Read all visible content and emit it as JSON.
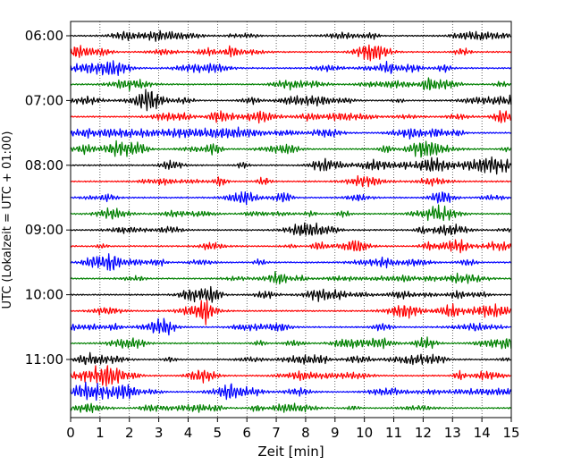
{
  "chart_data": {
    "type": "line",
    "subtype": "helicorder",
    "xlabel": "Zeit  [min]",
    "ylabel": "UTC (Lokalzeit = UTC + 01:00)",
    "xlim": [
      0,
      15
    ],
    "x_ticks": [
      0,
      1,
      2,
      3,
      4,
      5,
      6,
      7,
      8,
      9,
      10,
      11,
      12,
      13,
      14,
      15
    ],
    "x_tick_labels": [
      "0",
      "1",
      "2",
      "3",
      "4",
      "5",
      "6",
      "7",
      "8",
      "9",
      "10",
      "11",
      "12",
      "13",
      "14",
      "15"
    ],
    "y_tick_labels": [
      "06:00",
      "07:00",
      "08:00",
      "09:00",
      "10:00",
      "11:00"
    ],
    "trace_start_times": [
      "06:00",
      "06:15",
      "06:30",
      "06:45",
      "07:00",
      "07:15",
      "07:30",
      "07:45",
      "08:00",
      "08:15",
      "08:30",
      "08:45",
      "09:00",
      "09:15",
      "09:30",
      "09:45",
      "10:00",
      "10:15",
      "10:30",
      "10:45",
      "11:00",
      "11:15",
      "11:30",
      "11:45"
    ],
    "trace_minutes_per_line": 15,
    "color_cycle": [
      "#000000",
      "#ff0000",
      "#0000ff",
      "#008000"
    ],
    "grid": {
      "x": "dotted-vertical",
      "y": false
    },
    "legend": "none"
  }
}
